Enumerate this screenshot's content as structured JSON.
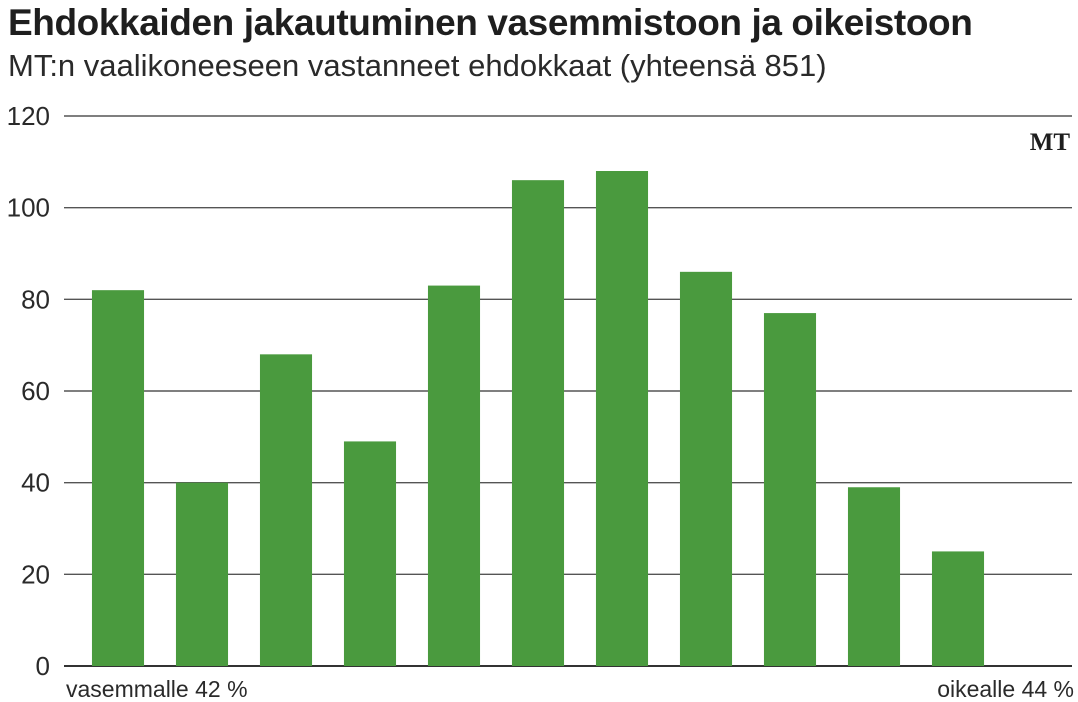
{
  "title": "Ehdokkaiden jakautuminen vasemmistoon ja oikeistoon",
  "subtitle": "MT:n vaalikoneeseen vastanneet ehdokkaat (yhteensä 851)",
  "source_logo": "MT",
  "colors": {
    "bar": "#4a9a3e",
    "grid": "#555555",
    "baseline": "#333333"
  },
  "chart_data": {
    "type": "bar",
    "categories": [
      "",
      "",
      "",
      "",
      "",
      "",
      "",
      "",
      "",
      "",
      "",
      ""
    ],
    "values": [
      82,
      40,
      68,
      49,
      83,
      106,
      108,
      86,
      77,
      39,
      25,
      0
    ],
    "ylim": [
      0,
      120
    ],
    "yticks": [
      0,
      20,
      40,
      60,
      80,
      100,
      120
    ],
    "grid": true,
    "left_end_label": "vasemmalle 42 %",
    "right_end_label": "oikealle 44 %"
  }
}
